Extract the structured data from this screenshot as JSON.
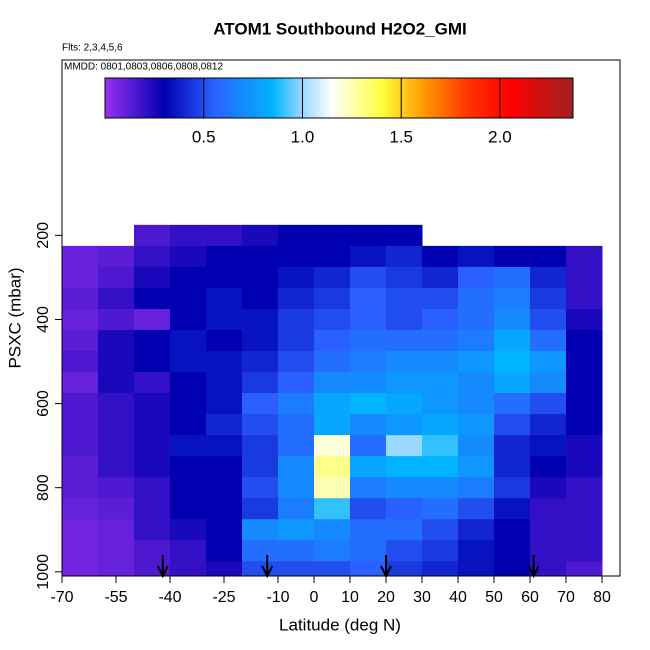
{
  "chart_data": {
    "type": "heatmap",
    "title": "ATOM1 Southbound H2O2_GMI",
    "subtitle": "Flts: 2,3,4,5,6",
    "annotation": "MMDD: 0801,0803,0806,0808,0812",
    "xlabel": "Latitude (deg N)",
    "ylabel": "PSXC (mbar)",
    "xlim": [
      -70,
      85
    ],
    "ylim": [
      1010,
      -217
    ],
    "xticks": [
      -70,
      -55,
      -40,
      -25,
      -10,
      0,
      10,
      20,
      30,
      40,
      50,
      60,
      70,
      80
    ],
    "yticks": [
      200,
      400,
      600,
      800,
      1000
    ],
    "x_edges": [
      -70,
      -60,
      -50,
      -40,
      -30,
      -20,
      -10,
      0,
      10,
      20,
      30,
      40,
      50,
      60,
      70,
      80
    ],
    "y_edges": [
      175,
      225,
      275,
      325,
      375,
      425,
      475,
      525,
      575,
      625,
      675,
      725,
      775,
      825,
      875,
      925,
      975,
      1010
    ],
    "values": [
      [
        null,
        null,
        0.15,
        0.2,
        0.2,
        0.25,
        0.3,
        0.3,
        0.3,
        0.3,
        null,
        null,
        null,
        null,
        null
      ],
      [
        0.1,
        0.12,
        0.2,
        0.25,
        0.3,
        0.3,
        0.3,
        0.3,
        0.35,
        0.4,
        0.3,
        0.35,
        0.3,
        0.3,
        0.2
      ],
      [
        0.1,
        0.15,
        0.25,
        0.3,
        0.3,
        0.3,
        0.35,
        0.4,
        0.5,
        0.45,
        0.4,
        0.55,
        0.6,
        0.4,
        0.2
      ],
      [
        0.12,
        0.2,
        0.3,
        0.3,
        0.35,
        0.3,
        0.4,
        0.45,
        0.55,
        0.5,
        0.5,
        0.6,
        0.65,
        0.45,
        0.2
      ],
      [
        0.1,
        0.15,
        0.1,
        0.3,
        0.35,
        0.35,
        0.45,
        0.5,
        0.55,
        0.5,
        0.55,
        0.6,
        0.7,
        0.5,
        0.25
      ],
      [
        0.12,
        0.25,
        0.3,
        0.35,
        0.3,
        0.35,
        0.45,
        0.55,
        0.6,
        0.6,
        0.6,
        0.65,
        0.8,
        0.6,
        0.3
      ],
      [
        0.15,
        0.25,
        0.3,
        0.35,
        0.35,
        0.4,
        0.5,
        0.6,
        0.65,
        0.7,
        0.7,
        0.75,
        0.85,
        0.75,
        0.3
      ],
      [
        0.1,
        0.25,
        0.2,
        0.3,
        0.35,
        0.45,
        0.55,
        0.7,
        0.7,
        0.75,
        0.75,
        0.7,
        0.8,
        0.7,
        0.3
      ],
      [
        0.15,
        0.2,
        0.25,
        0.3,
        0.35,
        0.55,
        0.65,
        0.8,
        0.85,
        0.8,
        0.75,
        0.7,
        0.6,
        0.5,
        0.3
      ],
      [
        0.15,
        0.2,
        0.25,
        0.3,
        0.4,
        0.5,
        0.6,
        0.8,
        0.7,
        0.75,
        0.8,
        0.75,
        0.5,
        0.4,
        0.3
      ],
      [
        0.15,
        0.2,
        0.25,
        0.35,
        0.35,
        0.45,
        0.6,
        1.2,
        0.6,
        1.0,
        0.9,
        0.7,
        0.4,
        0.35,
        0.25
      ],
      [
        0.12,
        0.2,
        0.25,
        0.3,
        0.3,
        0.45,
        0.7,
        1.3,
        0.8,
        0.85,
        0.85,
        0.75,
        0.4,
        0.3,
        0.25
      ],
      [
        0.12,
        0.15,
        0.2,
        0.3,
        0.3,
        0.5,
        0.7,
        1.25,
        0.65,
        0.7,
        0.7,
        0.65,
        0.45,
        0.25,
        0.2
      ],
      [
        0.1,
        0.12,
        0.2,
        0.3,
        0.3,
        0.45,
        0.65,
        0.9,
        0.5,
        0.55,
        0.6,
        0.5,
        0.35,
        0.2,
        0.2
      ],
      [
        0.08,
        0.1,
        0.2,
        0.25,
        0.3,
        0.7,
        0.75,
        0.7,
        0.6,
        0.6,
        0.5,
        0.4,
        0.3,
        0.2,
        0.2
      ],
      [
        0.08,
        0.1,
        0.15,
        0.2,
        0.3,
        0.6,
        0.6,
        0.65,
        0.6,
        0.5,
        0.45,
        0.35,
        0.3,
        0.2,
        0.2
      ],
      [
        0.08,
        0.1,
        0.15,
        0.2,
        0.25,
        0.5,
        0.5,
        0.5,
        0.55,
        0.45,
        0.4,
        0.35,
        0.3,
        0.2,
        0.15
      ]
    ],
    "clim": [
      0,
      2.37
    ],
    "cticks": [
      0.5,
      {
        "value": 1.0,
        "label": "1.0"
      },
      1.5,
      {
        "value": 2.0,
        "label": "2.0"
      }
    ],
    "colorscale": [
      {
        "value": 0,
        "color": "#9a30f0"
      },
      {
        "value": 0.3,
        "color": "#0000b0"
      },
      {
        "value": 0.55,
        "color": "#2a60ff"
      },
      {
        "value": 0.85,
        "color": "#00b4ff"
      },
      {
        "value": 1.0,
        "color": "#9ad8ff"
      },
      {
        "value": 1.15,
        "color": "#ffffff"
      },
      {
        "value": 1.4,
        "color": "#ffff40"
      },
      {
        "value": 1.6,
        "color": "#ffa000"
      },
      {
        "value": 1.85,
        "color": "#ff3000"
      },
      {
        "value": 2.05,
        "color": "#ff0000"
      },
      {
        "value": 2.37,
        "color": "#a02020"
      }
    ],
    "arrows": [
      -42,
      -13,
      20,
      61
    ]
  }
}
